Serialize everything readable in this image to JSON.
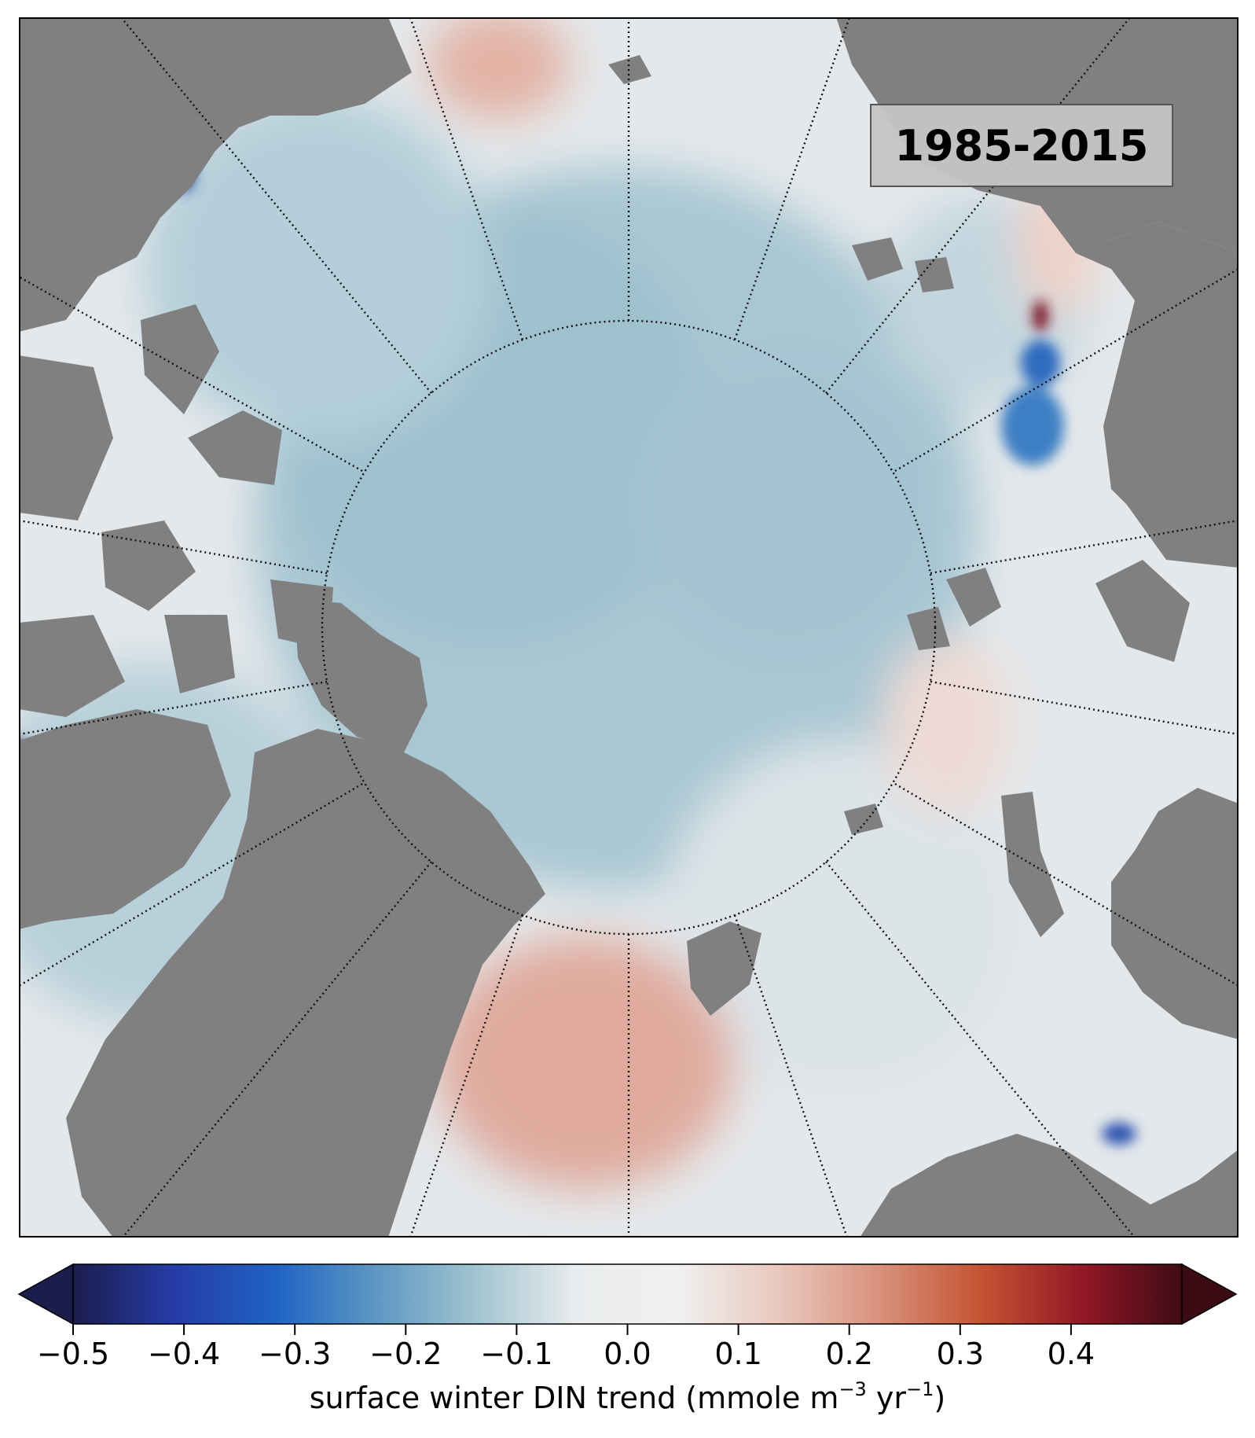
{
  "map": {
    "period_label": "1985-2015",
    "projection": "north-polar-stereographic",
    "land_color": "#808080",
    "ocean_neutral_color": "#e8eaec",
    "graticule_style": "dotted-black",
    "graticule_circle_latitude": 80
  },
  "colorbar": {
    "min": -0.5,
    "max": 0.5,
    "extend": "both",
    "ticks": [
      "−0.5",
      "−0.4",
      "−0.3",
      "−0.2",
      "−0.1",
      "0.0",
      "0.1",
      "0.2",
      "0.3",
      "0.4"
    ],
    "tick_values": [
      -0.5,
      -0.4,
      -0.3,
      -0.2,
      -0.1,
      0.0,
      0.1,
      0.2,
      0.3,
      0.4
    ],
    "label_main": "surface winter DIN trend (mmole m",
    "label_exp1": "−3",
    "label_mid": " yr",
    "label_exp2": "−1",
    "label_end": ")",
    "colors": [
      "#1b1d4d",
      "#263ba8",
      "#1f63c4",
      "#5d97c2",
      "#a2c4d0",
      "#e9ecee",
      "#f0f0f0",
      "#e9c8bd",
      "#d8917c",
      "#c55432",
      "#951827",
      "#3d0b14"
    ]
  }
}
